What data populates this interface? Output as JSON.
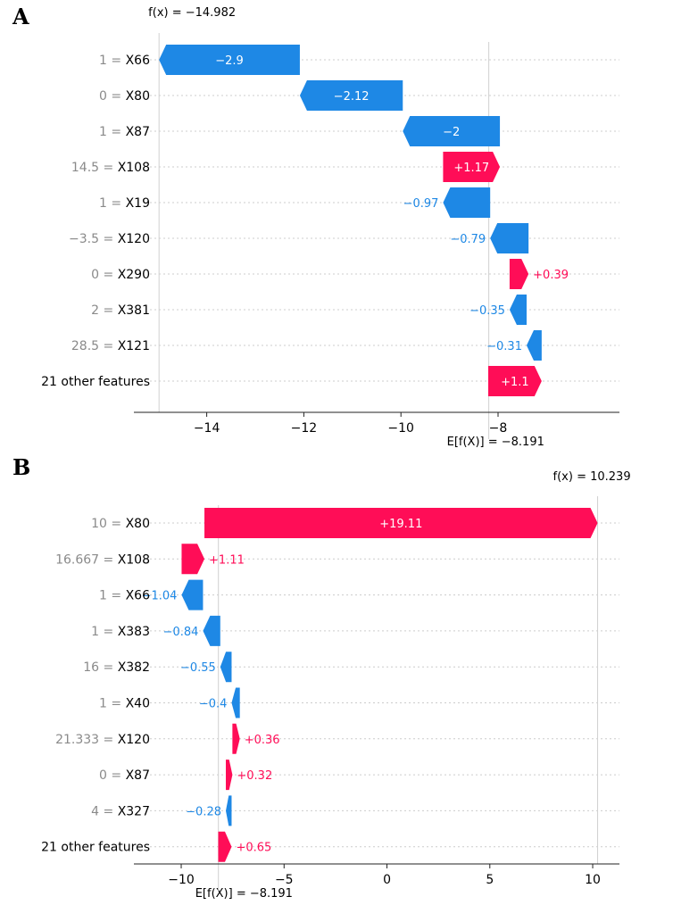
{
  "chart_data": [
    {
      "type": "waterfall",
      "panel": "A",
      "xlim": [
        -15.5,
        -5.5
      ],
      "xticks": [
        -14,
        -12,
        -10,
        -8
      ],
      "xtick_labels": [
        "−14",
        "−12",
        "−10",
        "−8"
      ],
      "base_value": -8.191,
      "base_label": "E[f(X)] = −8.191",
      "fx_value": -14.982,
      "fx_label": "f(x) = −14.982",
      "colors": {
        "positive": "#ff0d57",
        "negative": "#1e88e5"
      },
      "rows": [
        {
          "value": "1",
          "feature": "X66",
          "label": "1 = X66",
          "shap": -2.9,
          "shap_label": "−2.9"
        },
        {
          "value": "0",
          "feature": "X80",
          "label": "0 = X80",
          "shap": -2.12,
          "shap_label": "−2.12"
        },
        {
          "value": "1",
          "feature": "X87",
          "label": "1 = X87",
          "shap": -2.0,
          "shap_label": "−2"
        },
        {
          "value": "14.5",
          "feature": "X108",
          "label": "14.5 = X108",
          "shap": 1.17,
          "shap_label": "+1.17"
        },
        {
          "value": "1",
          "feature": "X19",
          "label": "1 = X19",
          "shap": -0.97,
          "shap_label": "−0.97"
        },
        {
          "value": "−3.5",
          "feature": "X120",
          "label": "−3.5 = X120",
          "shap": -0.79,
          "shap_label": "−0.79"
        },
        {
          "value": "0",
          "feature": "X290",
          "label": "0 = X290",
          "shap": 0.39,
          "shap_label": "+0.39"
        },
        {
          "value": "2",
          "feature": "X381",
          "label": "2 = X381",
          "shap": -0.35,
          "shap_label": "−0.35"
        },
        {
          "value": "28.5",
          "feature": "X121",
          "label": "28.5 = X121",
          "shap": -0.31,
          "shap_label": "−0.31"
        },
        {
          "value": "",
          "feature": "21 other features",
          "label": "21 other features",
          "shap": 1.1,
          "shap_label": "+1.1"
        }
      ]
    },
    {
      "type": "waterfall",
      "panel": "B",
      "xlim": [
        -12.3,
        11.3
      ],
      "xticks": [
        -10,
        -5,
        0,
        5,
        10
      ],
      "xtick_labels": [
        "−10",
        "−5",
        "0",
        "5",
        "10"
      ],
      "base_value": -8.191,
      "base_label": "E[f(X)] = −8.191",
      "fx_value": 10.239,
      "fx_label": "f(x) = 10.239",
      "colors": {
        "positive": "#ff0d57",
        "negative": "#1e88e5"
      },
      "rows": [
        {
          "value": "10",
          "feature": "X80",
          "label": "10 = X80",
          "shap": 19.11,
          "shap_label": "+19.11"
        },
        {
          "value": "16.667",
          "feature": "X108",
          "label": "16.667 = X108",
          "shap": 1.11,
          "shap_label": "+1.11"
        },
        {
          "value": "1",
          "feature": "X66",
          "label": "1 = X66",
          "shap": -1.04,
          "shap_label": "−1.04"
        },
        {
          "value": "1",
          "feature": "X383",
          "label": "1 = X383",
          "shap": -0.84,
          "shap_label": "−0.84"
        },
        {
          "value": "16",
          "feature": "X382",
          "label": "16 = X382",
          "shap": -0.55,
          "shap_label": "−0.55"
        },
        {
          "value": "1",
          "feature": "X40",
          "label": "1 = X40",
          "shap": -0.4,
          "shap_label": "−0.4"
        },
        {
          "value": "21.333",
          "feature": "X120",
          "label": "21.333 = X120",
          "shap": 0.36,
          "shap_label": "+0.36"
        },
        {
          "value": "0",
          "feature": "X87",
          "label": "0 = X87",
          "shap": 0.32,
          "shap_label": "+0.32"
        },
        {
          "value": "4",
          "feature": "X327",
          "label": "4 = X327",
          "shap": -0.28,
          "shap_label": "−0.28"
        },
        {
          "value": "",
          "feature": "21 other features",
          "label": "21 other features",
          "shap": 0.65,
          "shap_label": "+0.65"
        }
      ]
    }
  ]
}
